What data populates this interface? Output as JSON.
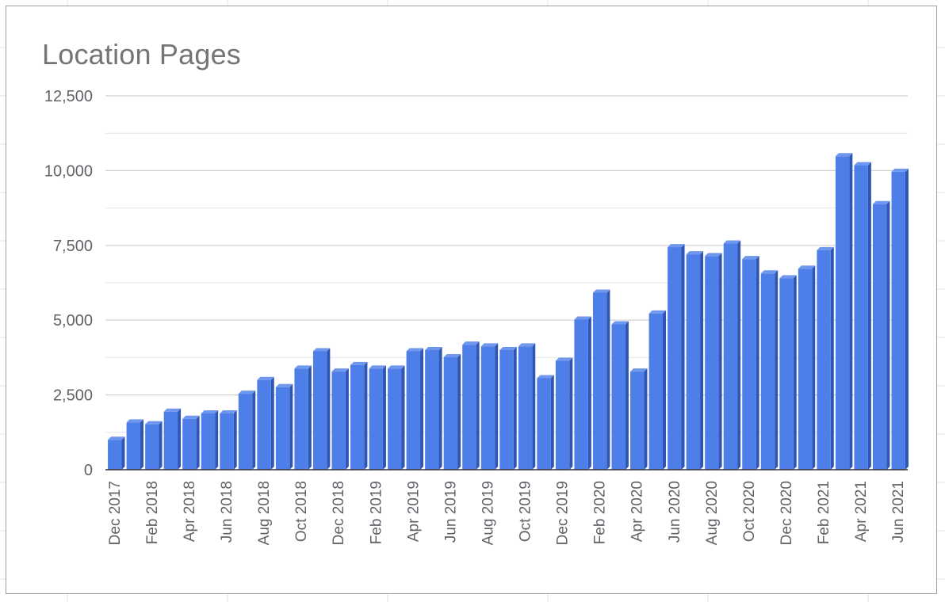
{
  "colors": {
    "bar_front": "#4e7fe8",
    "bar_side": "#2f56b0",
    "bar_top": "#6f97ee",
    "gridline": "#cfcfcf",
    "baseline": "#333333",
    "text": "#5f6368",
    "title": "#757575",
    "sheet_grid": "#e0e0e0"
  },
  "chart_data": {
    "type": "bar",
    "title": "Location Pages",
    "xlabel": "",
    "ylabel": "",
    "ylim": [
      0,
      12500
    ],
    "yticks": [
      0,
      2500,
      5000,
      7500,
      10000,
      12500
    ],
    "ytick_labels": [
      "0",
      "2,500",
      "5,000",
      "7,500",
      "10,000",
      "12,500"
    ],
    "grid": true,
    "legend": "none",
    "categories": [
      "Dec 2017",
      "Jan 2018",
      "Feb 2018",
      "Mar 2018",
      "Apr 2018",
      "May 2018",
      "Jun 2018",
      "Jul 2018",
      "Aug 2018",
      "Sep 2018",
      "Oct 2018",
      "Nov 2018",
      "Dec 2018",
      "Jan 2019",
      "Feb 2019",
      "Mar 2019",
      "Apr 2019",
      "May 2019",
      "Jun 2019",
      "Jul 2019",
      "Aug 2019",
      "Sep 2019",
      "Oct 2019",
      "Nov 2019",
      "Dec 2019",
      "Jan 2020",
      "Feb 2020",
      "Mar 2020",
      "Apr 2020",
      "May 2020",
      "Jun 2020",
      "Jul 2020",
      "Aug 2020",
      "Sep 2020",
      "Oct 2020",
      "Nov 2020",
      "Dec 2020",
      "Jan 2021",
      "Feb 2021",
      "Mar 2021",
      "Apr 2021",
      "May 2021",
      "Jun 2021"
    ],
    "xtick_labels": [
      "Dec 2017",
      "Feb 2018",
      "Apr 2018",
      "Jun 2018",
      "Aug 2018",
      "Oct 2018",
      "Dec 2018",
      "Feb 2019",
      "Apr 2019",
      "Jun 2019",
      "Aug 2019",
      "Oct 2019",
      "Dec 2019",
      "Feb 2020",
      "Apr 2020",
      "Jun 2020",
      "Aug 2020",
      "Oct 2020",
      "Dec 2020",
      "Feb 2021",
      "Apr 2021",
      "Jun 2021"
    ],
    "values": [
      1000,
      1580,
      1520,
      1940,
      1700,
      1880,
      1880,
      2540,
      3000,
      2760,
      3380,
      3960,
      3280,
      3500,
      3380,
      3380,
      3960,
      4000,
      3760,
      4180,
      4120,
      4000,
      4120,
      3060,
      3640,
      5020,
      5920,
      4860,
      3280,
      5220,
      7440,
      7200,
      7140,
      7560,
      7040,
      6560,
      6400,
      6720,
      7340,
      10480,
      10180,
      8880,
      9960
    ]
  }
}
